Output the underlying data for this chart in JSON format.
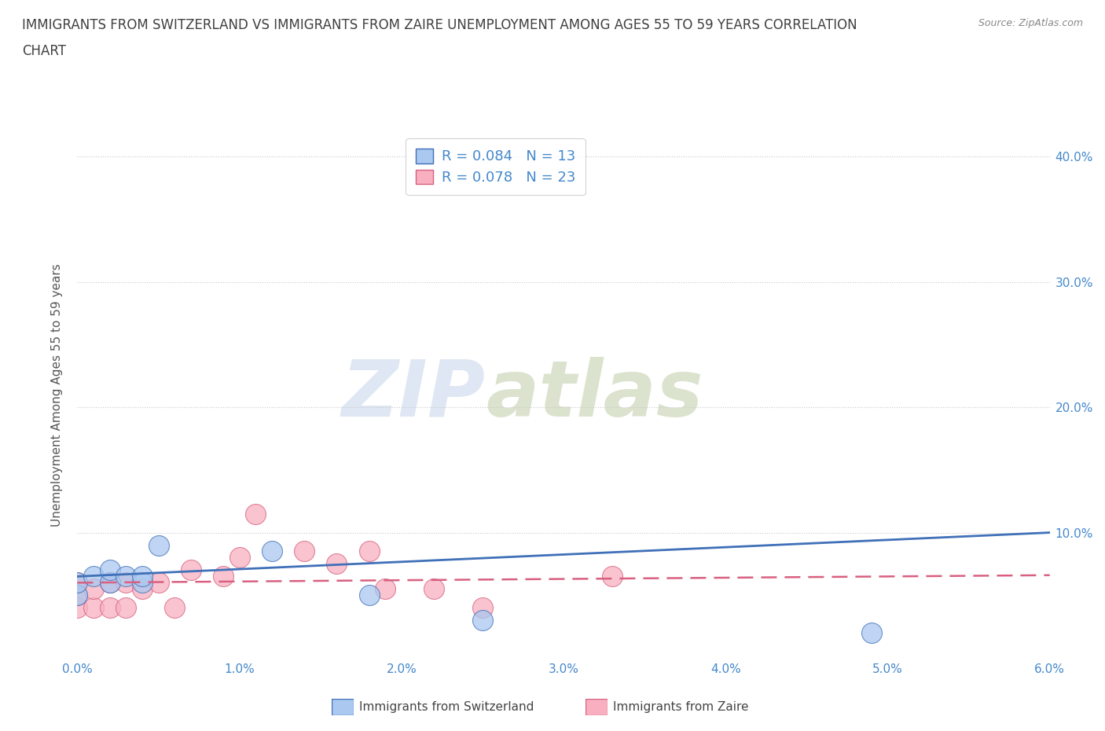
{
  "title_line1": "IMMIGRANTS FROM SWITZERLAND VS IMMIGRANTS FROM ZAIRE UNEMPLOYMENT AMONG AGES 55 TO 59 YEARS CORRELATION",
  "title_line2": "CHART",
  "source": "Source: ZipAtlas.com",
  "ylabel": "Unemployment Among Ages 55 to 59 years",
  "xlim": [
    0.0,
    0.06
  ],
  "ylim": [
    0.0,
    0.42
  ],
  "color_swiss": "#aac8f0",
  "color_zaire": "#f8b0c0",
  "line_color_swiss": "#4070b8",
  "line_color_zaire": "#d86080",
  "R_swiss": 0.084,
  "N_swiss": 13,
  "R_zaire": 0.078,
  "N_zaire": 23,
  "legend_label_swiss": "Immigrants from Switzerland",
  "legend_label_zaire": "Immigrants from Zaire",
  "watermark_zip": "ZIP",
  "watermark_atlas": "atlas",
  "swiss_x": [
    0.0,
    0.0,
    0.001,
    0.002,
    0.002,
    0.003,
    0.004,
    0.004,
    0.005,
    0.012,
    0.018,
    0.025,
    0.049
  ],
  "swiss_y": [
    0.05,
    0.06,
    0.065,
    0.06,
    0.07,
    0.065,
    0.06,
    0.065,
    0.09,
    0.085,
    0.05,
    0.03,
    0.02
  ],
  "zaire_x": [
    0.0,
    0.0,
    0.0,
    0.001,
    0.001,
    0.002,
    0.002,
    0.003,
    0.003,
    0.004,
    0.005,
    0.006,
    0.007,
    0.009,
    0.01,
    0.011,
    0.014,
    0.016,
    0.018,
    0.019,
    0.022,
    0.025,
    0.033
  ],
  "zaire_y": [
    0.04,
    0.05,
    0.06,
    0.04,
    0.055,
    0.06,
    0.04,
    0.06,
    0.04,
    0.055,
    0.06,
    0.04,
    0.07,
    0.065,
    0.08,
    0.115,
    0.085,
    0.075,
    0.085,
    0.055,
    0.055,
    0.04,
    0.065
  ],
  "swiss_trend_x": [
    0.0,
    0.06
  ],
  "swiss_trend_y": [
    0.065,
    0.1
  ],
  "zaire_trend_x": [
    0.0,
    0.06
  ],
  "zaire_trend_y": [
    0.06,
    0.066
  ],
  "background_color": "#ffffff",
  "grid_color": "#c8c8c8",
  "title_color": "#404040",
  "axis_color": "#4488cc",
  "tick_label_color": "#4488cc"
}
